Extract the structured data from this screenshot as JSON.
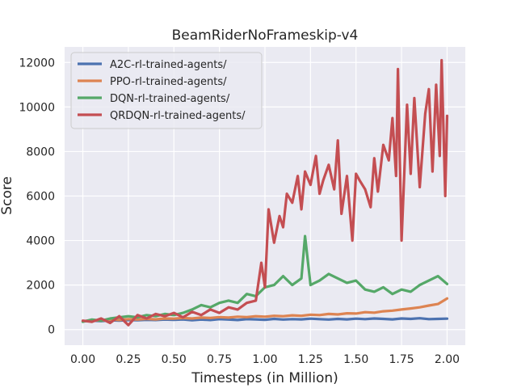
{
  "chart_data": {
    "type": "line",
    "title": "BeamRiderNoFrameskip-v4",
    "xlabel": "Timesteps (in Million)",
    "ylabel": "Score",
    "xlim": [
      -0.1,
      2.1
    ],
    "ylim": [
      -700,
      12700
    ],
    "x_ticks": [
      0.0,
      0.25,
      0.5,
      0.75,
      1.0,
      1.25,
      1.5,
      1.75,
      2.0
    ],
    "x_tick_labels": [
      "0.00",
      "0.25",
      "0.50",
      "0.75",
      "1.00",
      "1.25",
      "1.50",
      "1.75",
      "2.00"
    ],
    "y_ticks": [
      0,
      2000,
      4000,
      6000,
      8000,
      10000,
      12000
    ],
    "y_tick_labels": [
      "0",
      "2000",
      "4000",
      "6000",
      "8000",
      "10000",
      "12000"
    ],
    "grid": true,
    "legend": "top-left",
    "series": [
      {
        "name": "A2C-rl-trained-agents/",
        "color": "#4c72b0",
        "x": [
          0.0,
          0.05,
          0.1,
          0.15,
          0.2,
          0.25,
          0.3,
          0.35,
          0.4,
          0.45,
          0.5,
          0.55,
          0.6,
          0.65,
          0.7,
          0.75,
          0.8,
          0.85,
          0.9,
          0.95,
          1.0,
          1.05,
          1.1,
          1.15,
          1.2,
          1.25,
          1.3,
          1.35,
          1.4,
          1.45,
          1.5,
          1.55,
          1.6,
          1.65,
          1.7,
          1.75,
          1.8,
          1.85,
          1.9,
          1.95,
          2.0
        ],
        "y": [
          370,
          400,
          380,
          420,
          400,
          430,
          420,
          440,
          430,
          450,
          440,
          460,
          420,
          450,
          430,
          470,
          450,
          430,
          470,
          460,
          440,
          480,
          450,
          470,
          460,
          490,
          470,
          450,
          480,
          460,
          490,
          470,
          500,
          480,
          460,
          500,
          480,
          510,
          470,
          480,
          490
        ]
      },
      {
        "name": "PPO-rl-trained-agents/",
        "color": "#dd8452",
        "x": [
          0.0,
          0.05,
          0.1,
          0.15,
          0.2,
          0.25,
          0.3,
          0.35,
          0.4,
          0.45,
          0.5,
          0.55,
          0.6,
          0.65,
          0.7,
          0.75,
          0.8,
          0.85,
          0.9,
          0.95,
          1.0,
          1.05,
          1.1,
          1.15,
          1.2,
          1.25,
          1.3,
          1.35,
          1.4,
          1.45,
          1.5,
          1.55,
          1.6,
          1.65,
          1.7,
          1.75,
          1.8,
          1.85,
          1.9,
          1.95,
          2.0
        ],
        "y": [
          380,
          420,
          400,
          450,
          430,
          470,
          450,
          480,
          460,
          500,
          490,
          520,
          500,
          540,
          520,
          560,
          540,
          580,
          560,
          600,
          580,
          620,
          600,
          640,
          620,
          670,
          650,
          700,
          680,
          730,
          720,
          780,
          760,
          820,
          850,
          900,
          950,
          1000,
          1080,
          1150,
          1400
        ]
      },
      {
        "name": "DQN-rl-trained-agents/",
        "color": "#55a868",
        "x": [
          0.0,
          0.05,
          0.1,
          0.15,
          0.2,
          0.25,
          0.3,
          0.35,
          0.4,
          0.45,
          0.5,
          0.55,
          0.6,
          0.65,
          0.7,
          0.75,
          0.8,
          0.85,
          0.9,
          0.95,
          1.0,
          1.05,
          1.1,
          1.15,
          1.2,
          1.22,
          1.25,
          1.3,
          1.35,
          1.4,
          1.45,
          1.5,
          1.55,
          1.6,
          1.65,
          1.7,
          1.75,
          1.8,
          1.85,
          1.9,
          1.95,
          2.0
        ],
        "y": [
          350,
          450,
          400,
          500,
          550,
          600,
          550,
          650,
          600,
          700,
          650,
          750,
          900,
          1100,
          1000,
          1200,
          1300,
          1200,
          1600,
          1500,
          1900,
          2000,
          2400,
          2000,
          2300,
          4200,
          2000,
          2200,
          2500,
          2300,
          2100,
          2200,
          1800,
          1700,
          1900,
          1600,
          1800,
          1700,
          2000,
          2200,
          2400,
          2050
        ]
      },
      {
        "name": "QRDQN-rl-trained-agents/",
        "color": "#c44e52",
        "x": [
          0.0,
          0.05,
          0.1,
          0.15,
          0.2,
          0.25,
          0.3,
          0.35,
          0.4,
          0.45,
          0.5,
          0.55,
          0.6,
          0.65,
          0.7,
          0.75,
          0.8,
          0.85,
          0.9,
          0.95,
          0.98,
          1.0,
          1.02,
          1.05,
          1.08,
          1.1,
          1.12,
          1.15,
          1.18,
          1.2,
          1.22,
          1.25,
          1.28,
          1.3,
          1.32,
          1.35,
          1.38,
          1.4,
          1.42,
          1.45,
          1.48,
          1.5,
          1.52,
          1.55,
          1.58,
          1.6,
          1.62,
          1.65,
          1.68,
          1.7,
          1.72,
          1.73,
          1.75,
          1.78,
          1.8,
          1.82,
          1.85,
          1.88,
          1.9,
          1.92,
          1.94,
          1.96,
          1.97,
          1.99,
          2.0
        ],
        "y": [
          400,
          350,
          500,
          300,
          600,
          200,
          650,
          500,
          700,
          600,
          750,
          550,
          800,
          650,
          900,
          750,
          1000,
          900,
          1200,
          1300,
          3000,
          1900,
          5400,
          3900,
          5100,
          4600,
          6100,
          5700,
          6900,
          5400,
          7100,
          6500,
          7800,
          6100,
          6700,
          7400,
          6300,
          8500,
          5200,
          6900,
          4000,
          7000,
          6700,
          6300,
          5500,
          7700,
          6200,
          8300,
          7600,
          9500,
          6900,
          11700,
          4000,
          10100,
          7000,
          10400,
          6400,
          9700,
          10800,
          7100,
          11000,
          7800,
          12100,
          6000,
          9600
        ]
      }
    ]
  }
}
